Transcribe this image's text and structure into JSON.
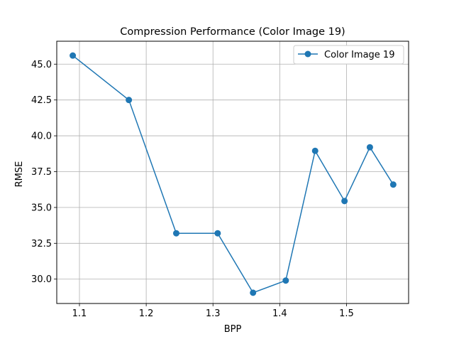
{
  "chart_data": {
    "type": "line",
    "title": "Compression Performance (Color Image 19)",
    "xlabel": "BPP",
    "ylabel": "RMSE",
    "xlim": [
      1.066,
      1.593
    ],
    "ylim": [
      28.3,
      46.6
    ],
    "xticks": [
      1.1,
      1.2,
      1.3,
      1.4,
      1.5
    ],
    "xtick_labels": [
      "1.1",
      "1.2",
      "1.3",
      "1.4",
      "1.5"
    ],
    "yticks": [
      30.0,
      32.5,
      35.0,
      37.5,
      40.0,
      42.5,
      45.0
    ],
    "ytick_labels": [
      "30.0",
      "32.5",
      "35.0",
      "37.5",
      "40.0",
      "42.5",
      "45.0"
    ],
    "grid": true,
    "legend_position": "top-right",
    "series": [
      {
        "name": "Color Image 19",
        "color": "#1f77b4",
        "marker": "circle",
        "x": [
          1.09,
          1.174,
          1.245,
          1.307,
          1.36,
          1.409,
          1.453,
          1.497,
          1.535,
          1.57
        ],
        "y": [
          45.6,
          42.5,
          33.2,
          33.2,
          29.05,
          29.9,
          38.95,
          35.45,
          39.2,
          36.6
        ]
      }
    ]
  }
}
